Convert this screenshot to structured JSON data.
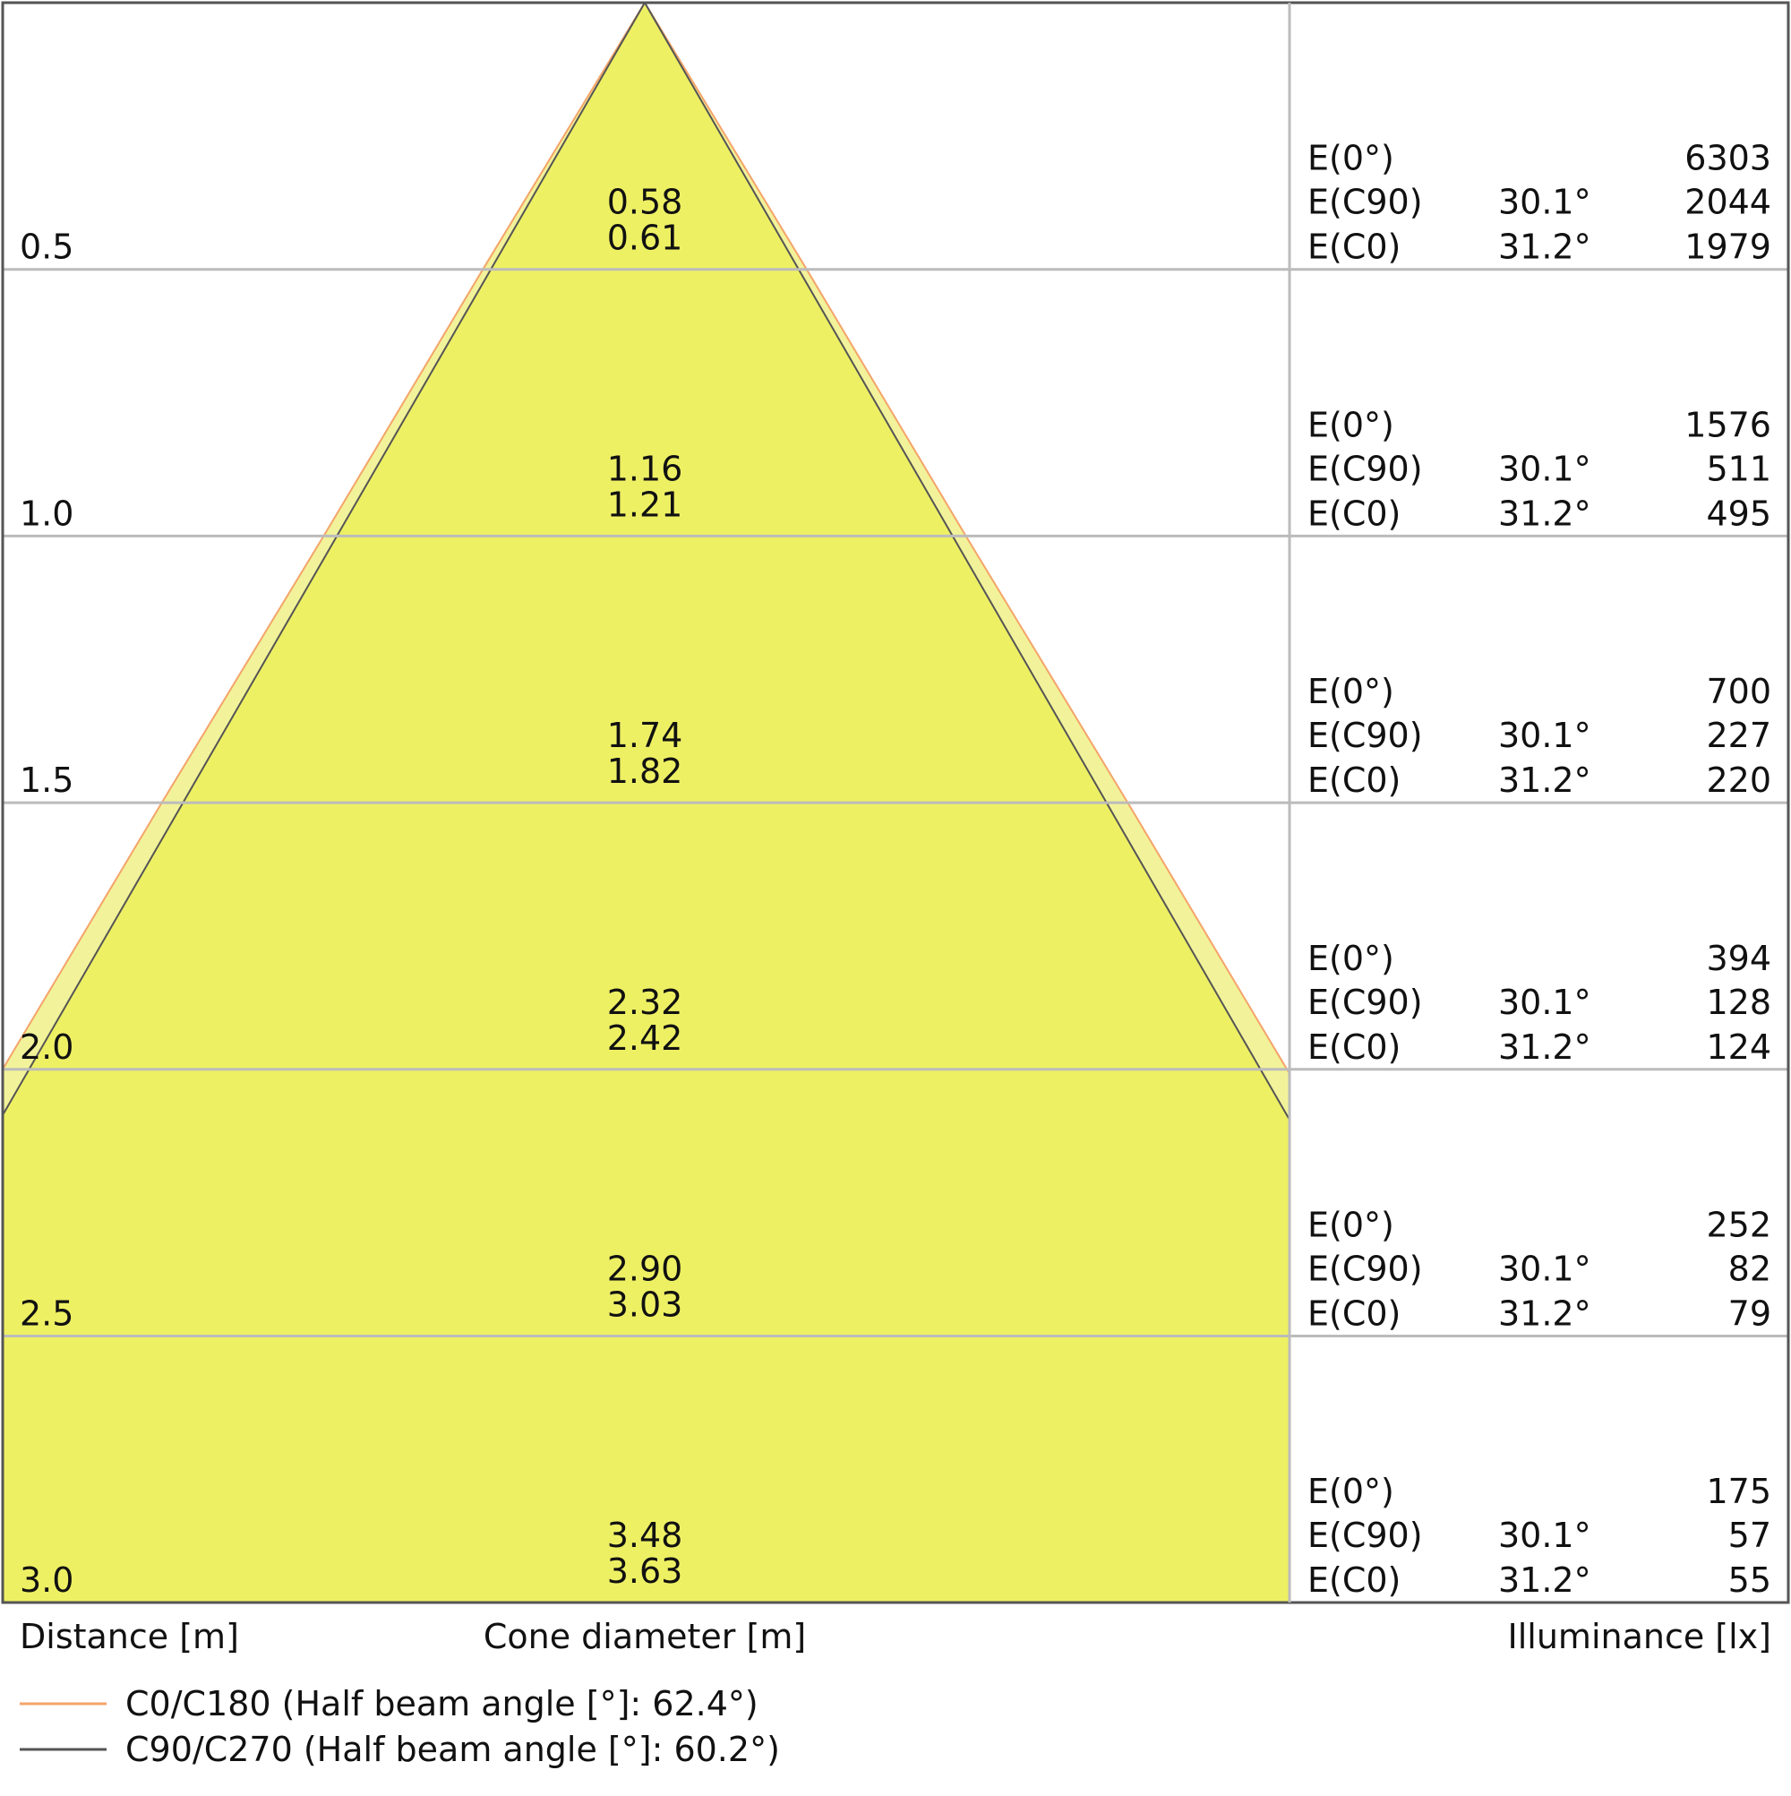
{
  "rows": [
    {
      "distance": "0.5",
      "c90_diameter": "0.58",
      "c0_diameter": "0.61",
      "e0": "6303",
      "ec90": "2044",
      "ec0": "1979"
    },
    {
      "distance": "1.0",
      "c90_diameter": "1.16",
      "c0_diameter": "1.21",
      "e0": "1576",
      "ec90": "511",
      "ec0": "495"
    },
    {
      "distance": "1.5",
      "c90_diameter": "1.74",
      "c0_diameter": "1.82",
      "e0": "700",
      "ec90": "227",
      "ec0": "220"
    },
    {
      "distance": "2.0",
      "c90_diameter": "2.32",
      "c0_diameter": "2.42",
      "e0": "394",
      "ec90": "128",
      "ec0": "124"
    },
    {
      "distance": "2.5",
      "c90_diameter": "2.90",
      "c0_diameter": "3.03",
      "e0": "252",
      "ec90": "82",
      "ec0": "79"
    },
    {
      "distance": "3.0",
      "c90_diameter": "3.48",
      "c0_diameter": "3.63",
      "e0": "175",
      "ec90": "57",
      "ec0": "55"
    }
  ],
  "labels": {
    "e0": "E(0°)",
    "ec90": "E(C90)",
    "ec0": "E(C0)",
    "c90_angle": "30.1°",
    "c0_angle": "31.2°"
  },
  "axis": {
    "distance": "Distance [m]",
    "cone": "Cone diameter [m]",
    "illuminance": "Illuminance [lx]"
  },
  "legend": [
    {
      "label": "C0/C180 (Half beam angle [°]: 62.4°)",
      "color": "#f4a46a"
    },
    {
      "label": "C90/C270 (Half beam angle [°]: 60.2°)",
      "color": "#555555"
    }
  ]
}
